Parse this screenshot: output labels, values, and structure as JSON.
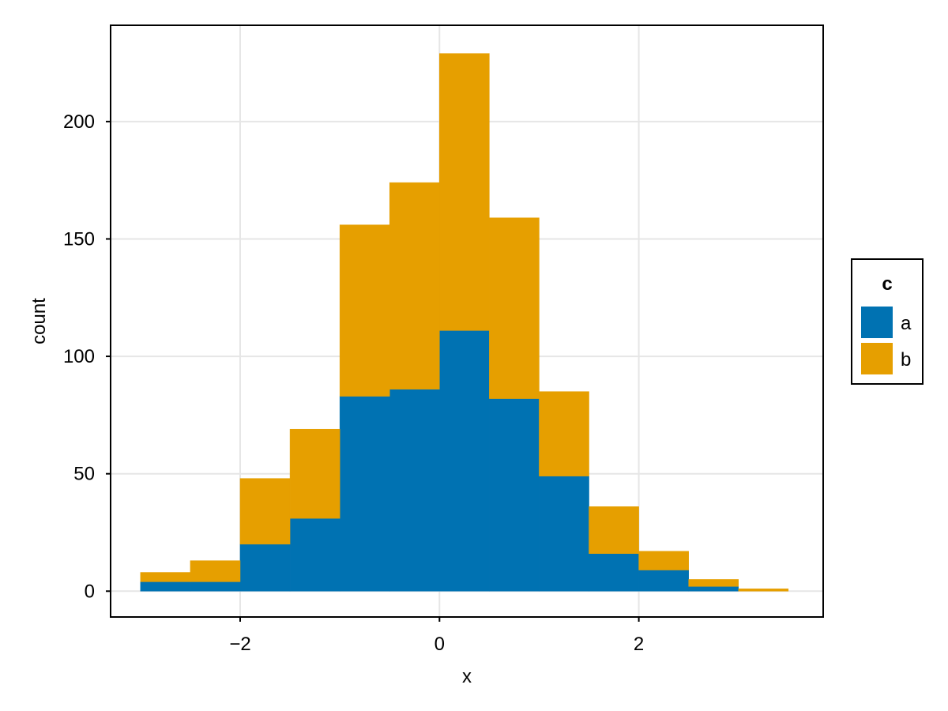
{
  "chart_data": {
    "type": "bar",
    "stacked": true,
    "title": "",
    "xlabel": "x",
    "ylabel": "count",
    "xlim": [
      -3.3,
      3.85
    ],
    "ylim": [
      -11,
      241
    ],
    "x_ticks": [
      -2,
      0,
      2
    ],
    "x_tick_labels": [
      "−2",
      "0",
      "2"
    ],
    "y_ticks": [
      0,
      50,
      100,
      150,
      200
    ],
    "y_tick_labels": [
      "0",
      "50",
      "100",
      "150",
      "200"
    ],
    "grid": true,
    "bin_edges": [
      -3.0,
      -2.5,
      -2.0,
      -1.5,
      -1.0,
      -0.5,
      0.0,
      0.5,
      1.0,
      1.5,
      2.0,
      2.5,
      3.0,
      3.5
    ],
    "series": [
      {
        "name": "a",
        "color": "#0072b2",
        "values": [
          4,
          4,
          20,
          31,
          83,
          86,
          111,
          82,
          49,
          16,
          9,
          2,
          0
        ]
      },
      {
        "name": "b",
        "color": "#e69f00",
        "values": [
          4,
          9,
          28,
          38,
          73,
          88,
          118,
          77,
          36,
          20,
          8,
          3,
          1
        ]
      }
    ],
    "legend": {
      "title": "c",
      "placement": "right",
      "entries": [
        "a",
        "b"
      ]
    }
  }
}
